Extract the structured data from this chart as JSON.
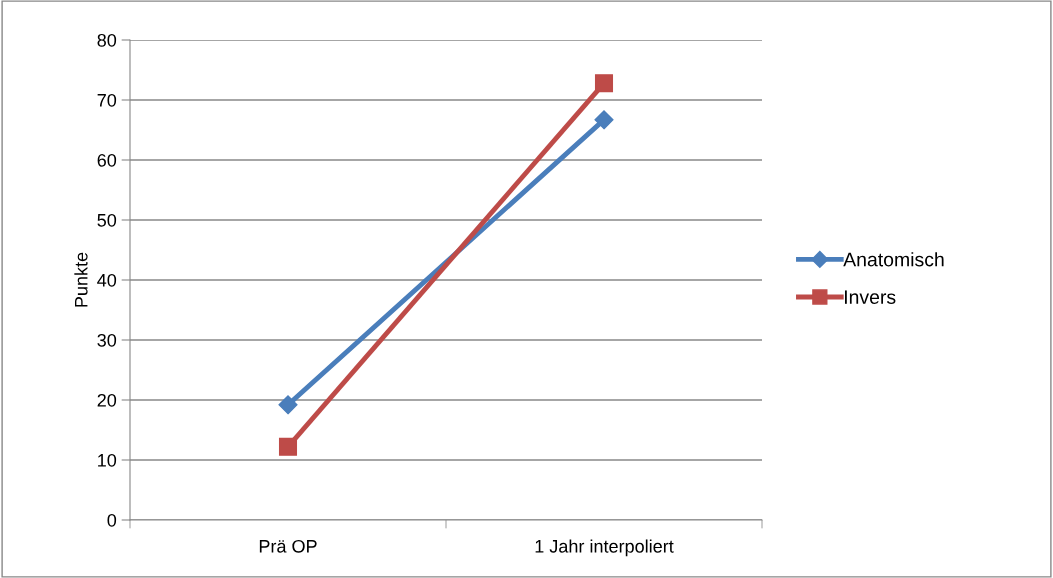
{
  "chart_data": {
    "type": "line",
    "ylabel": "Punkte",
    "categories": [
      "Prä OP",
      "1 Jahr interpoliert"
    ],
    "series": [
      {
        "name": "Anatomisch",
        "color": "#4a7ebb",
        "values": [
          19.2,
          66.7
        ],
        "marker": "diamond"
      },
      {
        "name": "Invers",
        "color": "#be4b48",
        "values": [
          12.2,
          72.8
        ],
        "marker": "square"
      }
    ],
    "ylim": [
      0,
      80
    ],
    "yticks": [
      0,
      10,
      20,
      30,
      40,
      50,
      60,
      70,
      80
    ],
    "grid": "y",
    "legend": "right"
  }
}
